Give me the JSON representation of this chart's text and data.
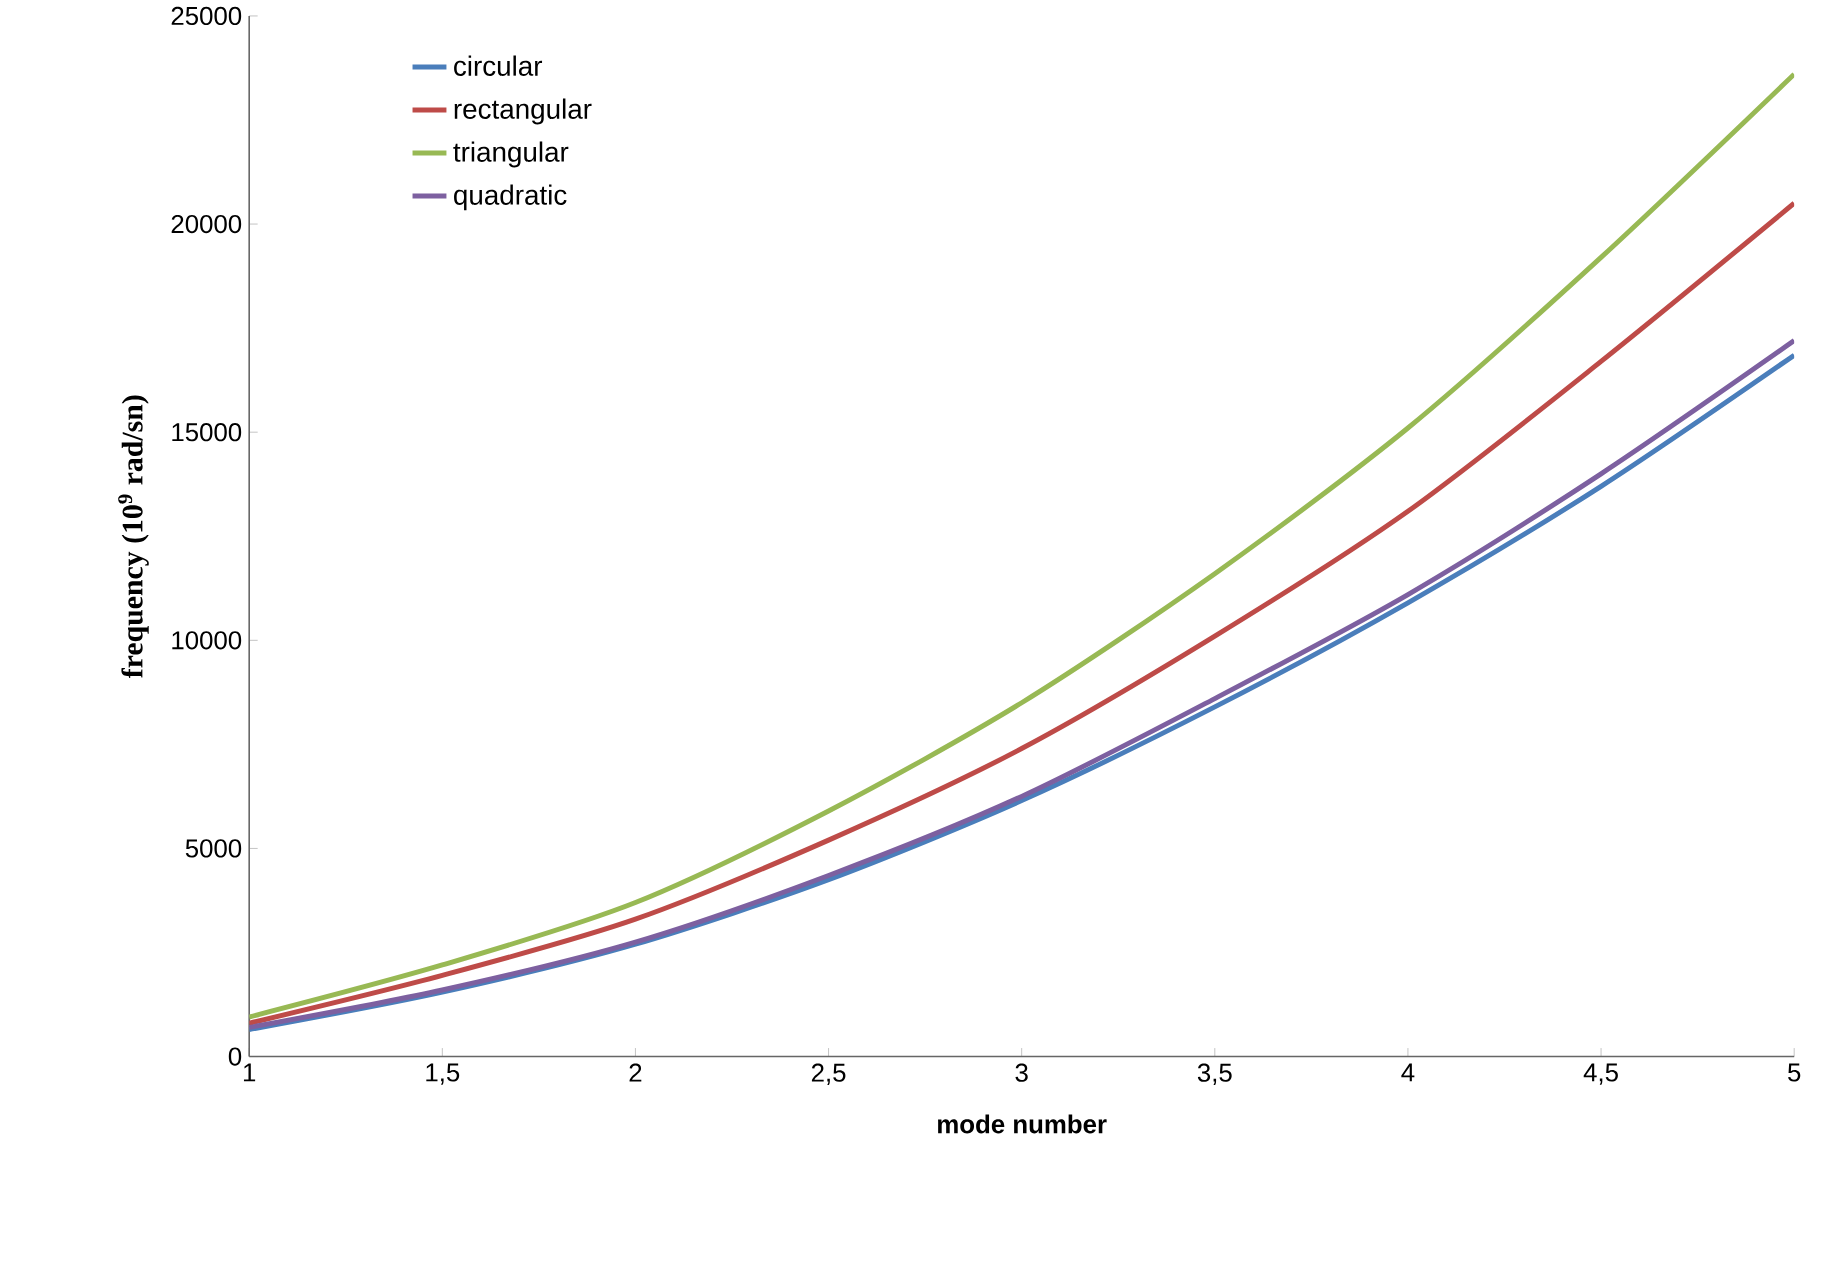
{
  "chart_data": {
    "type": "line",
    "xlabel": "mode number",
    "ylabel": "frequency (10$^{9}$ rad/sn)",
    "xlim": [
      1,
      5
    ],
    "ylim": [
      0,
      25000
    ],
    "xticks": [
      1,
      {
        "value": 1.5,
        "label": "1,5"
      },
      2,
      {
        "value": 2.5,
        "label": "2,5"
      },
      3,
      {
        "value": 3.5,
        "label": "3,5"
      },
      4,
      {
        "value": 4.5,
        "label": "4,5"
      },
      5
    ],
    "yticks": [
      0,
      5000,
      10000,
      15000,
      20000,
      25000
    ],
    "x": [
      1,
      1.5,
      2,
      2.5,
      3,
      3.5,
      4,
      4.5,
      5
    ],
    "series": [
      {
        "name": "circular",
        "color": "#4a7ebb",
        "values": [
          650,
          1550,
          2700,
          4250,
          6150,
          8400,
          10900,
          13700,
          16850
        ]
      },
      {
        "name": "rectangular",
        "color": "#be4b48",
        "values": [
          800,
          1950,
          3300,
          5200,
          7400,
          10100,
          13100,
          16700,
          20500
        ]
      },
      {
        "name": "triangular",
        "color": "#98b954",
        "values": [
          950,
          2200,
          3700,
          5900,
          8500,
          11600,
          15100,
          19200,
          23600
        ]
      },
      {
        "name": "quadratic",
        "color": "#7d60a0",
        "values": [
          700,
          1600,
          2750,
          4350,
          6250,
          8600,
          11100,
          14000,
          17200
        ]
      }
    ],
    "legend": "top left",
    "grid": false
  }
}
